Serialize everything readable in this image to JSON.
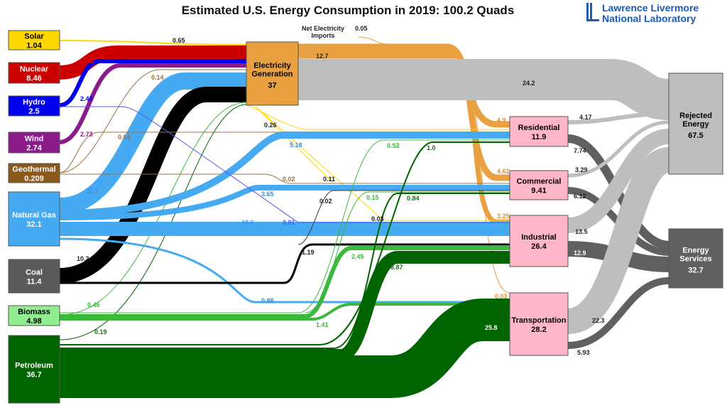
{
  "title": "Estimated U.S. Energy Consumption in 2019: 100.2 Quads",
  "logo": {
    "line1": "Lawrence Livermore",
    "line2": "National Laboratory",
    "color": "#1a5bb5"
  },
  "imports_label": [
    "Net Electricity",
    "Imports"
  ],
  "electricity_delivered": "12.7",
  "nodes": [
    {
      "id": "solar",
      "label": "Solar",
      "value": "1.04",
      "color": "#FFD700"
    },
    {
      "id": "nuclear",
      "label": "Nuclear",
      "value": "8.46",
      "color": "#CC0000"
    },
    {
      "id": "hydro",
      "label": "Hydro",
      "value": "2.5",
      "color": "#0000EE"
    },
    {
      "id": "wind",
      "label": "Wind",
      "value": "2.74",
      "color": "#8B1A8B"
    },
    {
      "id": "geothermal",
      "label": "Geothermal",
      "value": "0.209",
      "color": "#8B5A1A"
    },
    {
      "id": "natural-gas",
      "label": "Natural Gas",
      "value": "32.1",
      "color": "#45AAF2"
    },
    {
      "id": "coal",
      "label": "Coal",
      "value": "11.4",
      "color": "#5A5A5A"
    },
    {
      "id": "biomass",
      "label": "Biomass",
      "value": "4.98",
      "color": "#90EE90"
    },
    {
      "id": "petroleum",
      "label": "Petroleum",
      "value": "36.7",
      "color": "#006400"
    },
    {
      "id": "electricity",
      "label": "Electricity Generation",
      "value": "37",
      "color": "#E8A040"
    },
    {
      "id": "residential",
      "label": "Residential",
      "value": "11.9",
      "color": "#FFB6C8"
    },
    {
      "id": "commercial",
      "label": "Commercial",
      "value": "9.41",
      "color": "#FFB6C8"
    },
    {
      "id": "industrial",
      "label": "Industrial",
      "value": "26.4",
      "color": "#FFB6C8"
    },
    {
      "id": "transportation",
      "label": "Transportation",
      "value": "28.2",
      "color": "#FFB6C8"
    },
    {
      "id": "rejected",
      "label": "Rejected Energy",
      "value": "67.5",
      "color": "#BEBEBE"
    },
    {
      "id": "services",
      "label": "Energy Services",
      "value": "32.7",
      "color": "#606060"
    }
  ],
  "flows": [
    {
      "from": "solar",
      "to": "electricity",
      "value": "0.65",
      "color": "#FFD700"
    },
    {
      "from": "nuclear",
      "to": "electricity",
      "value": "8.46",
      "color": "#CC0000"
    },
    {
      "from": "hydro",
      "to": "electricity",
      "value": "2.48",
      "color": "#0000EE"
    },
    {
      "from": "wind",
      "to": "electricity",
      "value": "2.73",
      "color": "#8B1A8B"
    },
    {
      "from": "geothermal",
      "to": "electricity",
      "value": "0.14",
      "color": "#A07040"
    },
    {
      "from": "natural-gas",
      "to": "electricity",
      "value": "11.7",
      "color": "#45AAF2"
    },
    {
      "from": "coal",
      "to": "electricity",
      "value": "10.2",
      "color": "#000000"
    },
    {
      "from": "biomass",
      "to": "electricity",
      "value": "0.45",
      "color": "#3CB83C"
    },
    {
      "from": "petroleum",
      "to": "electricity",
      "value": "0.19",
      "color": "#006400"
    },
    {
      "from": "imports",
      "to": "electricity",
      "value": "0.05",
      "color": "#E8A040"
    },
    {
      "from": "electricity",
      "to": "residential",
      "value": "4.9",
      "color": "#E8A040"
    },
    {
      "from": "electricity",
      "to": "commercial",
      "value": "4.62",
      "color": "#E8A040"
    },
    {
      "from": "electricity",
      "to": "industrial",
      "value": "3.25",
      "color": "#E8A040"
    },
    {
      "from": "electricity",
      "to": "transportation",
      "value": "0.03",
      "color": "#E8A040"
    },
    {
      "from": "electricity",
      "to": "rejected",
      "value": "24.2",
      "color": "#BEBEBE"
    },
    {
      "from": "solar",
      "to": "residential",
      "value": "0.26",
      "color": "#FFD700"
    },
    {
      "from": "solar",
      "to": "commercial",
      "value": "0.11",
      "color": "#FFD700"
    },
    {
      "from": "solar",
      "to": "industrial",
      "value": "0.03",
      "color": "#FFD700"
    },
    {
      "from": "geothermal",
      "to": "residential",
      "value": "0.04",
      "color": "#A07040"
    },
    {
      "from": "geothermal",
      "to": "commercial",
      "value": "0.02",
      "color": "#A07040"
    },
    {
      "from": "natural-gas",
      "to": "residential",
      "value": "5.18",
      "color": "#45AAF2"
    },
    {
      "from": "natural-gas",
      "to": "commercial",
      "value": "3.65",
      "color": "#45AAF2"
    },
    {
      "from": "natural-gas",
      "to": "industrial",
      "value": "10.6",
      "color": "#45AAF2"
    },
    {
      "from": "natural-gas",
      "to": "transportation",
      "value": "0.98",
      "color": "#45AAF2"
    },
    {
      "from": "hydro",
      "to": "industrial",
      "value": "0.01",
      "color": "#5555EE"
    },
    {
      "from": "coal",
      "to": "industrial",
      "value": "1.19",
      "color": "#000000"
    },
    {
      "from": "coal",
      "to": "commercial",
      "value": "0.02",
      "color": "#333333"
    },
    {
      "from": "biomass",
      "to": "residential",
      "value": "0.53",
      "color": "#3CB83C"
    },
    {
      "from": "biomass",
      "to": "commercial",
      "value": "0.15",
      "color": "#3CB83C"
    },
    {
      "from": "biomass",
      "to": "industrial",
      "value": "2.45",
      "color": "#3CB83C"
    },
    {
      "from": "biomass",
      "to": "transportation",
      "value": "1.41",
      "color": "#3CB83C"
    },
    {
      "from": "petroleum",
      "to": "residential",
      "value": "1.0",
      "color": "#006400"
    },
    {
      "from": "petroleum",
      "to": "commercial",
      "value": "0.84",
      "color": "#006400"
    },
    {
      "from": "petroleum",
      "to": "industrial",
      "value": "8.87",
      "color": "#006400"
    },
    {
      "from": "petroleum",
      "to": "transportation",
      "value": "25.8",
      "color": "#006400"
    },
    {
      "from": "residential",
      "to": "rejected",
      "value": "4.17",
      "color": "#BEBEBE"
    },
    {
      "from": "residential",
      "to": "services",
      "value": "7.74",
      "color": "#606060"
    },
    {
      "from": "commercial",
      "to": "rejected",
      "value": "3.29",
      "color": "#BEBEBE"
    },
    {
      "from": "commercial",
      "to": "services",
      "value": "6.12",
      "color": "#606060"
    },
    {
      "from": "industrial",
      "to": "rejected",
      "value": "13.5",
      "color": "#BEBEBE"
    },
    {
      "from": "industrial",
      "to": "services",
      "value": "12.9",
      "color": "#606060"
    },
    {
      "from": "transportation",
      "to": "rejected",
      "value": "22.3",
      "color": "#BEBEBE"
    },
    {
      "from": "transportation",
      "to": "services",
      "value": "5.93",
      "color": "#606060"
    }
  ]
}
